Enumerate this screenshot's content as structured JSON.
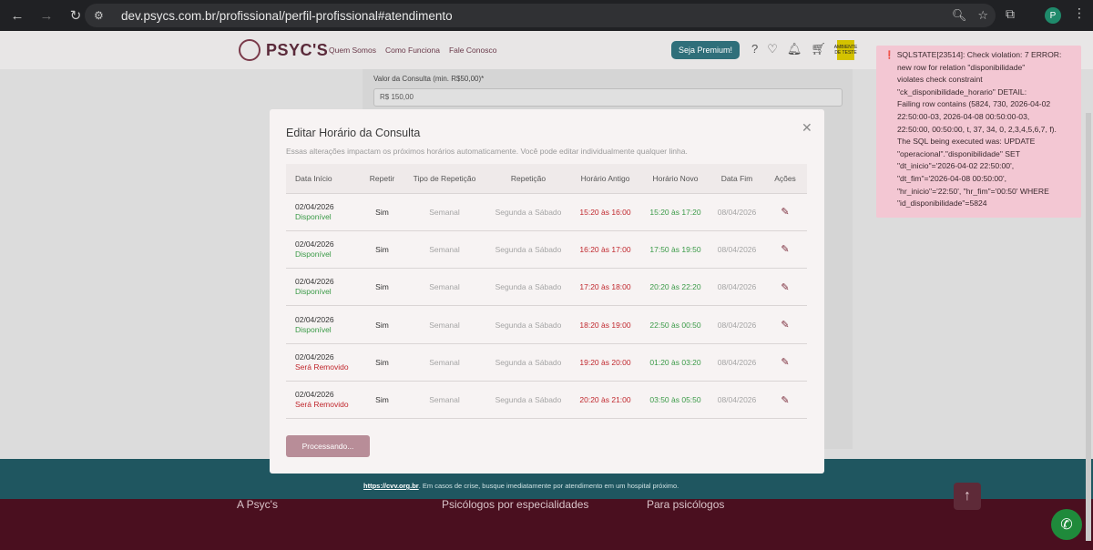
{
  "browser": {
    "url": "dev.psycs.com.br/profissional/perfil-profissional#atendimento",
    "profile_initial": "P"
  },
  "site": {
    "brand": "PSYC'S",
    "nav": [
      "Quem Somos",
      "Como Funciona",
      "Fale Conosco"
    ],
    "premium_label": "Seja Premium!",
    "test_badge": "AMBIENTE DE TESTE",
    "price_label": "Valor da Consulta (min. R$50,00)*",
    "price_value": "R$ 150,00",
    "crisis_text": "https://cvv.org.br",
    "crisis_rest": ". Em casos de crise, busque imediatamente por atendimento em um hospital próximo.",
    "footer_cols": [
      "A Psyc's",
      "Psicólogos por especialidades",
      "Para psicólogos"
    ]
  },
  "modal": {
    "title": "Editar Horário da Consulta",
    "subtitle": "Essas alterações impactam os próximos horários automaticamente. Você pode editar individualmente qualquer linha.",
    "headers": [
      "Data Início",
      "Repetir",
      "Tipo de Repetição",
      "Repetição",
      "Horário Antigo",
      "Horário Novo",
      "Data Fim",
      "Ações"
    ],
    "rows": [
      {
        "date": "02/04/2026",
        "status": "Disponível",
        "repeat": "Sim",
        "type": "Semanal",
        "recurrence": "Segunda a Sábado",
        "old": "15:20 às 16:00",
        "new": "15:20 às 17:20",
        "end": "08/04/2026"
      },
      {
        "date": "02/04/2026",
        "status": "Disponível",
        "repeat": "Sim",
        "type": "Semanal",
        "recurrence": "Segunda a Sábado",
        "old": "16:20 às 17:00",
        "new": "17:50 às 19:50",
        "end": "08/04/2026"
      },
      {
        "date": "02/04/2026",
        "status": "Disponível",
        "repeat": "Sim",
        "type": "Semanal",
        "recurrence": "Segunda a Sábado",
        "old": "17:20 às 18:00",
        "new": "20:20 às 22:20",
        "end": "08/04/2026"
      },
      {
        "date": "02/04/2026",
        "status": "Disponível",
        "repeat": "Sim",
        "type": "Semanal",
        "recurrence": "Segunda a Sábado",
        "old": "18:20 às 19:00",
        "new": "22:50 às 00:50",
        "end": "08/04/2026"
      },
      {
        "date": "02/04/2026",
        "status": "Será Removido",
        "repeat": "Sim",
        "type": "Semanal",
        "recurrence": "Segunda a Sábado",
        "old": "19:20 às 20:00",
        "new": "01:20 às 03:20",
        "end": "08/04/2026"
      },
      {
        "date": "02/04/2026",
        "status": "Será Removido",
        "repeat": "Sim",
        "type": "Semanal",
        "recurrence": "Segunda a Sábado",
        "old": "20:20 às 21:00",
        "new": "03:50 às 05:50",
        "end": "08/04/2026"
      }
    ],
    "button_label": "Processando..."
  },
  "toast": {
    "lines": [
      "SQLSTATE[23514]: Check violation: 7 ERROR:",
      "new row for relation \"disponibilidade\"",
      "violates check constraint",
      "\"ck_disponibilidade_horario\" DETAIL:",
      "Failing row contains (5824, 730, 2026-04-02",
      "22:50:00-03, 2026-04-08 00:50:00-03,",
      "22:50:00, 00:50:00, t, 37, 34, 0, 2,3,4,5,6,7, f).",
      "The SQL being executed was: UPDATE",
      "\"operacional\".\"disponibilidade\" SET",
      "\"dt_inicio\"='2026-04-02 22:50:00',",
      "\"dt_fim\"='2026-04-08 00:50:00',",
      "\"hr_inicio\"='22:50', \"hr_fim\"='00:50' WHERE",
      "\"id_disponibilidade\"=5824"
    ]
  },
  "colors": {
    "available": "#3a9a47",
    "removed": "#c0272d",
    "toast_bg": "#f3c7d3",
    "brand": "#5a2a3a"
  }
}
